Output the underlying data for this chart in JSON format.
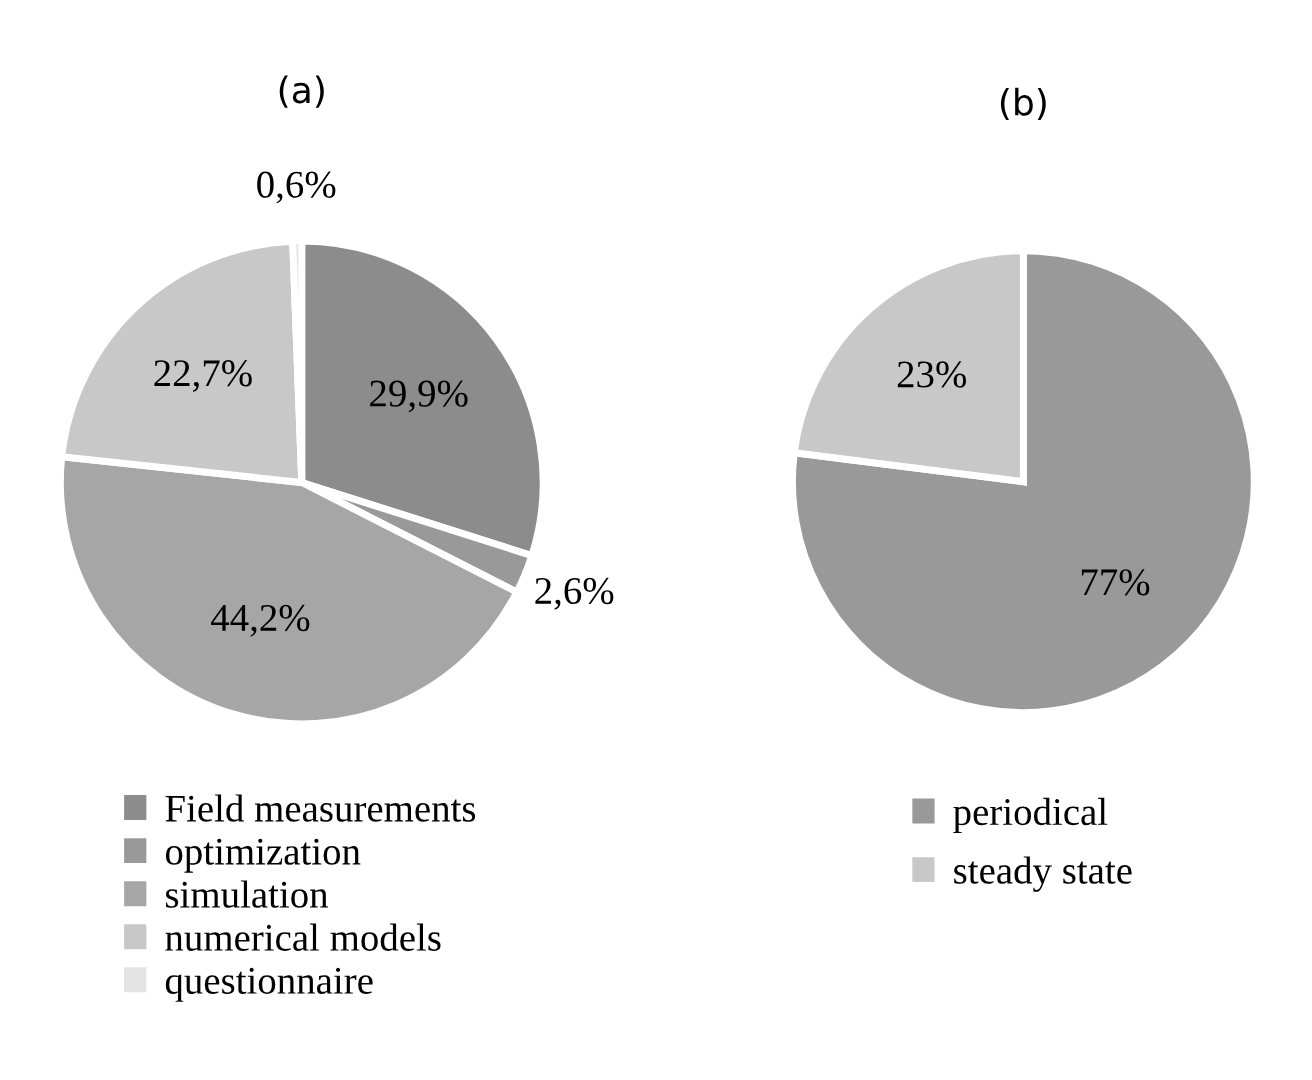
{
  "chart_data": [
    {
      "type": "pie",
      "title": "(a)",
      "categories": [
        "Field measurements",
        "optimization",
        "simulation",
        "numerical models",
        "questionnaire"
      ],
      "values": [
        29.9,
        2.6,
        44.2,
        22.7,
        0.6
      ],
      "colors": [
        "#8c8c8c",
        "#999999",
        "#a6a6a6",
        "#c8c8c8",
        "#e3e3e3"
      ],
      "value_labels": [
        "29,9%",
        "2,6%",
        "44,2%",
        "22,7%",
        "0,6%"
      ],
      "legend": "bottom"
    },
    {
      "type": "pie",
      "title": "(b)",
      "categories": [
        "periodical",
        "steady state"
      ],
      "values": [
        77,
        23
      ],
      "colors": [
        "#999999",
        "#c8c8c8"
      ],
      "value_labels": [
        "77%",
        "23%"
      ],
      "legend": "bottom"
    }
  ]
}
